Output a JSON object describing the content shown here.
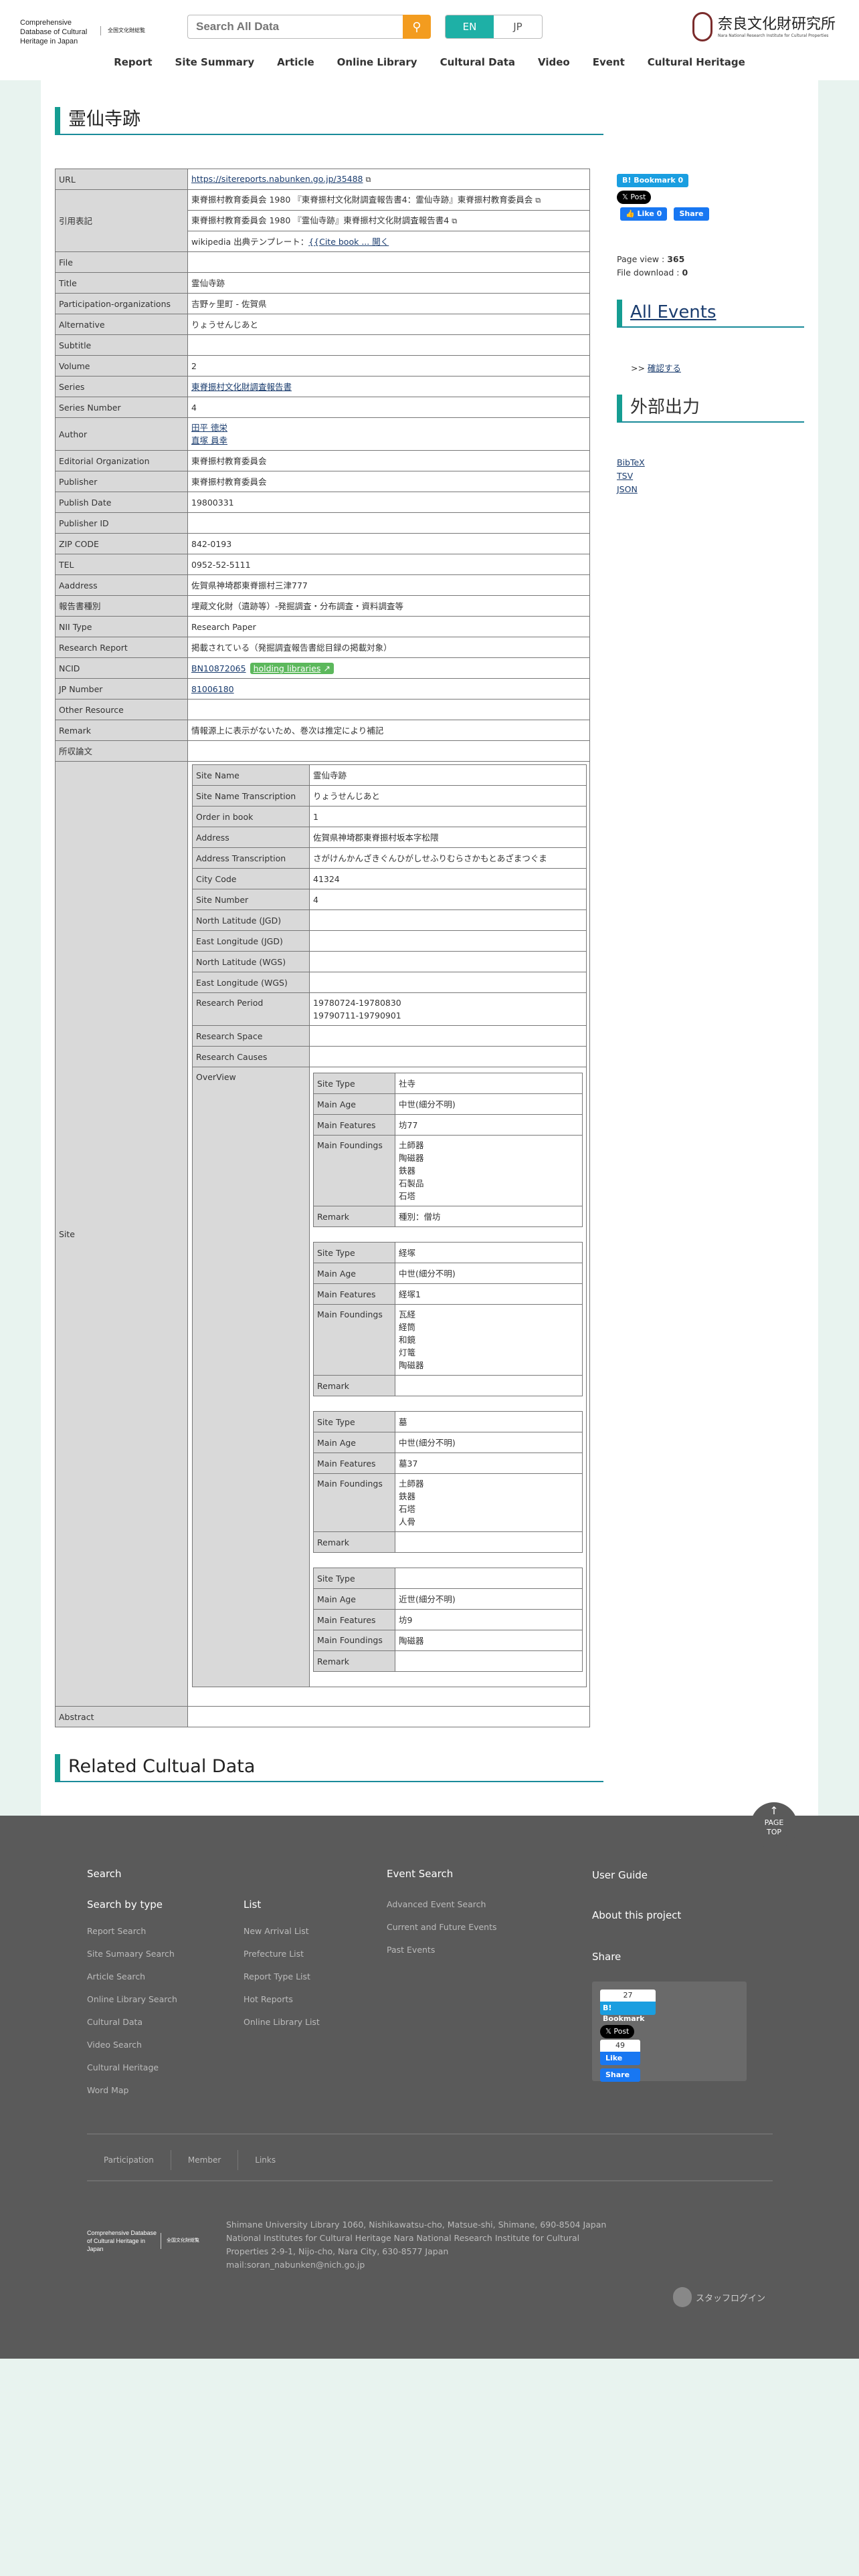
{
  "header": {
    "logo_en": "Comprehensive Database of Cultural Heritage in Japan",
    "logo_jp": "全国文化財総覧",
    "search_placeholder": "Search All Data",
    "lang_en": "EN",
    "lang_jp": "JP",
    "nara_name": "奈良文化財研究所",
    "nara_en": "Nara National Research Institute for Cultural Properties"
  },
  "nav": [
    "Report",
    "Site Summary",
    "Article",
    "Online Library",
    "Cultural Data",
    "Video",
    "Event",
    "Cultural Heritage"
  ],
  "page_title": "霊仙寺跡",
  "social": {
    "bookmark": "B! Bookmark",
    "bookmark_count": "0",
    "post": "𝕏 Post",
    "like": "Like 0",
    "share": "Share"
  },
  "stats": {
    "page_view_label": "Page view : ",
    "page_view": "365",
    "download_label": "File download : ",
    "download": "0"
  },
  "all_events": {
    "title": "All Events",
    "link_prefix": ">> ",
    "link": "確認する"
  },
  "export": {
    "title": "外部出力",
    "links": [
      "BibTeX",
      "TSV",
      "JSON"
    ]
  },
  "record": {
    "url_label": "URL",
    "url": "https://sitereports.nabunken.go.jp/35488",
    "cite_label": "引用表記",
    "cite1": "東脊振村教育委員会 1980 『東脊振村文化財調査報告書4：霊仙寺跡』東脊振村教育委員会",
    "cite2": "東脊振村教育委員会 1980 『霊仙寺跡』東脊振村文化財調査報告書4",
    "cite3_prefix": "wikipedia 出典テンプレート：",
    "cite3_link": "{{Cite book ... 開く",
    "rows1": [
      [
        "File",
        ""
      ],
      [
        "Title",
        "霊仙寺跡"
      ],
      [
        "Participation-organizations",
        "吉野ヶ里町 - 佐賀県"
      ],
      [
        "Alternative",
        "りょうせんじあと"
      ],
      [
        "Subtitle",
        ""
      ],
      [
        "Volume",
        "2"
      ]
    ],
    "series_label": "Series",
    "series": "東脊振村文化財調査報告書",
    "series_number_label": "Series Number",
    "series_number": "4",
    "author_label": "Author",
    "authors": [
      "田平 徳栄",
      "直塚 員幸"
    ],
    "rows2": [
      [
        "Editorial Organization",
        "東脊振村教育委員会"
      ],
      [
        "Publisher",
        "東脊振村教育委員会"
      ],
      [
        "Publish Date",
        "19800331"
      ],
      [
        "Publisher ID",
        ""
      ],
      [
        "ZIP CODE",
        "842-0193"
      ],
      [
        "TEL",
        "0952-52-5111"
      ],
      [
        "Aaddress",
        "佐賀県神埼郡東脊振村三津777"
      ],
      [
        "報告書種別",
        "埋蔵文化財（遺跡等）-発掘調査・分布調査・資料調査等"
      ],
      [
        "NII Type",
        "Research Paper"
      ],
      [
        "Research Report",
        "掲載されている（発掘調査報告書総目録の掲載対象）"
      ]
    ],
    "ncid_label": "NCID",
    "ncid": "BN10872065",
    "holding": "holding libraries",
    "jp_label": "JP Number",
    "jp": "81006180",
    "rows3": [
      [
        "Other Resource",
        ""
      ],
      [
        "Remark",
        "情報源上に表示がないため、巻次は推定により補記"
      ],
      [
        "所収論文",
        ""
      ]
    ],
    "site_label": "Site",
    "site_rows": [
      [
        "Site Name",
        "霊仙寺跡"
      ],
      [
        "Site Name Transcription",
        "りょうせんじあと"
      ],
      [
        "Order in book",
        "1"
      ],
      [
        "Address",
        "佐賀県神埼郡東脊振村坂本字松隈"
      ],
      [
        "Address Transcription",
        "さがけんかんざきぐんひがしせふりむらさかもとあざまつぐま"
      ],
      [
        "City Code",
        "41324"
      ],
      [
        "Site Number",
        "4"
      ],
      [
        "North Latitude (JGD)",
        ""
      ],
      [
        "East Longitude (JGD)",
        ""
      ],
      [
        "North Latitude (WGS)",
        ""
      ],
      [
        "East Longitude (WGS)",
        ""
      ]
    ],
    "period_label": "Research Period",
    "period": [
      "19780724-19780830",
      "19790711-19790901"
    ],
    "space_label": "Research Space",
    "causes_label": "Research Causes",
    "overview_label": "OverView",
    "ov_labels": {
      "type": "Site Type",
      "age": "Main Age",
      "features": "Main Features",
      "foundings": "Main Foundings",
      "remark": "Remark"
    },
    "overviews": [
      {
        "type": "社寺",
        "age": "中世(細分不明)",
        "features": "坊77",
        "foundings": [
          "土師器",
          "陶磁器",
          "鉄器",
          "石製品",
          "石塔"
        ],
        "remark": "種別：僧坊"
      },
      {
        "type": "経塚",
        "age": "中世(細分不明)",
        "features": "経塚1",
        "foundings": [
          "瓦経",
          "経筒",
          "和鏡",
          "灯篭",
          "陶磁器"
        ],
        "remark": ""
      },
      {
        "type": "墓",
        "age": "中世(細分不明)",
        "features": "墓37",
        "foundings": [
          "土師器",
          "鉄器",
          "石塔",
          "人骨"
        ],
        "remark": ""
      },
      {
        "type": "",
        "age": "近世(細分不明)",
        "features": "坊9",
        "foundings": [
          "陶磁器"
        ],
        "remark": ""
      }
    ],
    "abstract_label": "Abstract"
  },
  "related_title": "Related Cultual Data",
  "footer": {
    "page_top": "PAGE TOP",
    "search": "Search",
    "search_by_type": "Search by type",
    "search_links": [
      "Report Search",
      "Site Sumaary Search",
      "Article Search",
      "Online Library Search",
      "Cultural Data",
      "Video Search",
      "Cultural Heritage",
      "Word Map"
    ],
    "list": "List",
    "list_links": [
      "New Arrival List",
      "Prefecture List",
      "Report Type List",
      "Hot Reports",
      "Online Library List"
    ],
    "event_search": "Event Search",
    "event_links": [
      "Advanced Event Search",
      "Current and Future Events",
      "Past Events"
    ],
    "user_guide": "User Guide",
    "about": "About this project",
    "share": "Share",
    "share_bookmark_count": "27",
    "share_bookmark": "B! Bookmark",
    "share_post": "𝕏 Post",
    "share_like_count": "49",
    "share_like": "Like",
    "share_share": "Share",
    "bottom_links": [
      "Participation",
      "Member",
      "Links"
    ],
    "address": [
      "Shimane University Library 1060, Nishikawatsu-cho, Matsue-shi, Shimane, 690-8504 Japan",
      "National Institutes for Cultural Heritage Nara National Research Institute for Cultural",
      "Properties 2-9-1, Nijo-cho, Nara City, 630-8577 Japan",
      "mail:soran_nabunken@nich.go.jp"
    ],
    "staff_login": "スタッフログイン"
  },
  "colors": {
    "accent": "#159d92",
    "search_button": "#f39c1f",
    "footer_bg": "#5a5a5a",
    "page_bg": "#e8f3ef"
  }
}
